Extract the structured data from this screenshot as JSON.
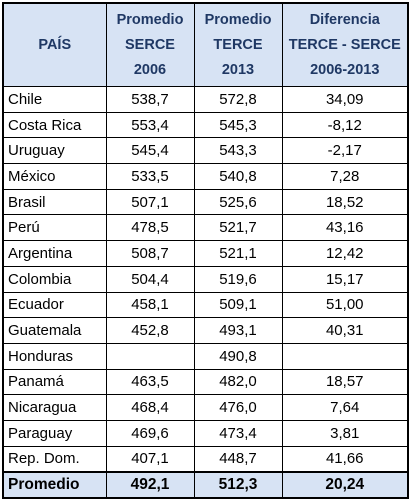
{
  "headers": {
    "pais": "PAÍS",
    "serce": [
      "Promedio",
      "SERCE",
      "2006"
    ],
    "terce": [
      "Promedio",
      "TERCE",
      "2013"
    ],
    "diff": [
      "Diferencia",
      "TERCE - SERCE",
      "2006-2013"
    ]
  },
  "rows": [
    {
      "pais": "Chile",
      "serce": "538,7",
      "terce": "572,8",
      "diff": "34,09"
    },
    {
      "pais": "Costa Rica",
      "serce": "553,4",
      "terce": "545,3",
      "diff": "-8,12"
    },
    {
      "pais": "Uruguay",
      "serce": "545,4",
      "terce": "543,3",
      "diff": "-2,17"
    },
    {
      "pais": "México",
      "serce": "533,5",
      "terce": "540,8",
      "diff": "7,28"
    },
    {
      "pais": "Brasil",
      "serce": "507,1",
      "terce": "525,6",
      "diff": "18,52"
    },
    {
      "pais": "Perú",
      "serce": "478,5",
      "terce": "521,7",
      "diff": "43,16"
    },
    {
      "pais": "Argentina",
      "serce": "508,7",
      "terce": "521,1",
      "diff": "12,42"
    },
    {
      "pais": "Colombia",
      "serce": "504,4",
      "terce": "519,6",
      "diff": "15,17"
    },
    {
      "pais": "Ecuador",
      "serce": "458,1",
      "terce": "509,1",
      "diff": "51,00"
    },
    {
      "pais": "Guatemala",
      "serce": "452,8",
      "terce": "493,1",
      "diff": "40,31"
    },
    {
      "pais": "Honduras",
      "serce": "",
      "terce": "490,8",
      "diff": ""
    },
    {
      "pais": "Panamá",
      "serce": "463,5",
      "terce": "482,0",
      "diff": "18,57"
    },
    {
      "pais": "Nicaragua",
      "serce": "468,4",
      "terce": "476,0",
      "diff": "7,64"
    },
    {
      "pais": "Paraguay",
      "serce": "469,6",
      "terce": "473,4",
      "diff": "3,81"
    },
    {
      "pais": "Rep. Dom.",
      "serce": "407,1",
      "terce": "448,7",
      "diff": "41,66"
    }
  ],
  "total": {
    "pais": "Promedio",
    "serce": "492,1",
    "terce": "512,3",
    "diff": "20,24"
  },
  "colors": {
    "header_bg": "#d7e3f4",
    "header_text": "#1f3864"
  }
}
